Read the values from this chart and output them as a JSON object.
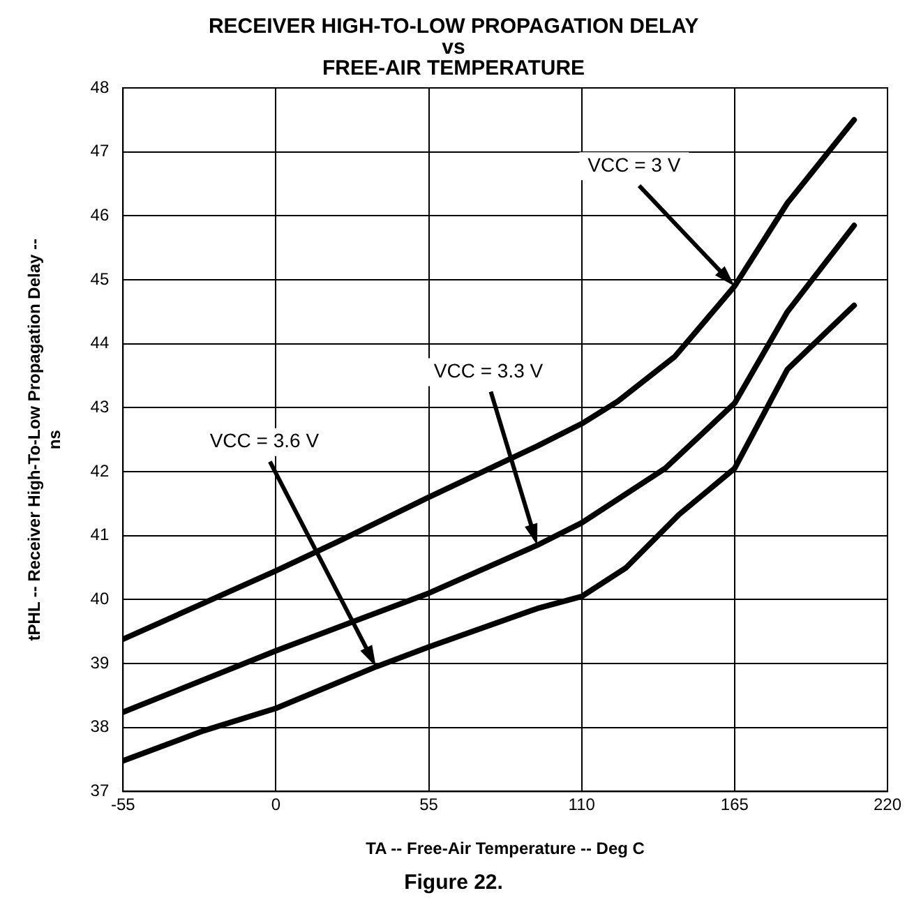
{
  "chart_data": {
    "type": "line",
    "title": "RECEIVER HIGH-TO-LOW PROPAGATION DELAY\nvs\nFREE-AIR TEMPERATURE",
    "xlabel": "TA -- Free-Air Temperature -- Deg C",
    "ylabel": "tPHL -- Receiver High-To-Low Propagation Delay --\nns",
    "series": [
      {
        "color": "#000000",
        "x": [
          -55,
          0,
          22,
          55,
          94,
          110,
          123,
          143.5,
          165,
          184,
          208
        ],
        "values": [
          39.38,
          40.45,
          40.9,
          41.6,
          42.4,
          42.75,
          43.1,
          43.8,
          44.9,
          46.2,
          47.5
        ]
      },
      {
        "color": "#000000",
        "x": [
          -55,
          0,
          55,
          94,
          110,
          140,
          165,
          184,
          208
        ],
        "values": [
          38.24,
          39.2,
          40.1,
          40.85,
          41.2,
          42.05,
          43.07,
          44.5,
          45.85
        ]
      },
      {
        "color": "#000000",
        "x": [
          -55,
          -26,
          0,
          36,
          55,
          94,
          110,
          126,
          145,
          165,
          184,
          208
        ],
        "values": [
          37.48,
          37.95,
          38.3,
          38.95,
          39.26,
          39.86,
          40.05,
          40.5,
          41.33,
          42.05,
          43.6,
          44.6
        ]
      }
    ],
    "annotations": [
      "VCC = 3 V",
      "VCC = 3.3 V",
      "VCC = 3.6 V",
      "Figure 22."
    ],
    "xlim": [
      -55,
      220
    ],
    "xticks": [
      -55,
      0,
      55,
      110,
      165,
      220
    ],
    "ylim": [
      37,
      48
    ],
    "yticks": [
      37,
      38,
      39,
      40,
      41,
      42,
      43,
      44,
      45,
      46,
      47,
      48
    ],
    "grid": true,
    "marker": "none",
    "line_style": "solid",
    "legend": false
  }
}
